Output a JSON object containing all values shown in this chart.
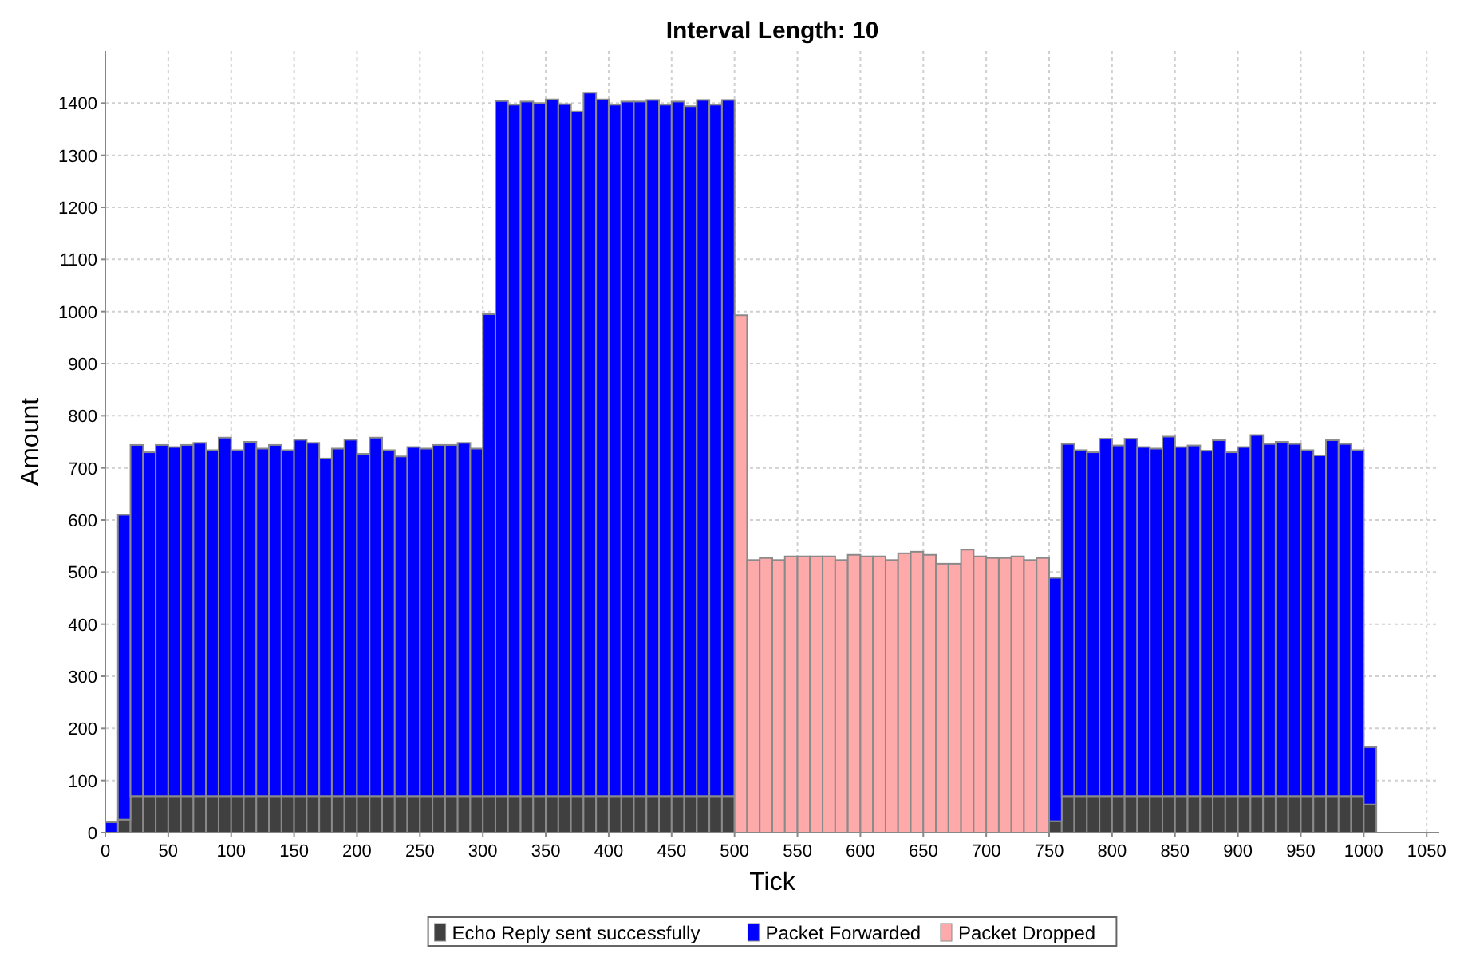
{
  "chart_data": {
    "type": "bar",
    "title": "Interval Length: 10",
    "xlabel": "Tick",
    "ylabel": "Amount",
    "stacked": true,
    "grid": true,
    "legend": "bottom",
    "x": [
      5,
      15,
      25,
      35,
      45,
      55,
      65,
      75,
      85,
      95,
      105,
      115,
      125,
      135,
      145,
      155,
      165,
      175,
      185,
      195,
      205,
      215,
      225,
      235,
      245,
      255,
      265,
      275,
      285,
      295,
      305,
      315,
      325,
      335,
      345,
      355,
      365,
      375,
      385,
      395,
      405,
      415,
      425,
      435,
      445,
      455,
      465,
      475,
      485,
      495,
      505,
      515,
      525,
      535,
      545,
      555,
      565,
      575,
      585,
      595,
      605,
      615,
      625,
      635,
      645,
      655,
      665,
      675,
      685,
      695,
      705,
      715,
      725,
      735,
      745,
      755,
      765,
      775,
      785,
      795,
      805,
      815,
      825,
      835,
      845,
      855,
      865,
      875,
      885,
      895,
      905,
      915,
      925,
      935,
      945,
      955,
      965,
      975,
      985,
      995,
      1005
    ],
    "xlim": [
      0,
      1060
    ],
    "xticks": [
      0,
      50,
      100,
      150,
      200,
      250,
      300,
      350,
      400,
      450,
      500,
      550,
      600,
      650,
      700,
      750,
      800,
      850,
      900,
      950,
      1000,
      1050
    ],
    "ylim": [
      0,
      1500
    ],
    "yticks": [
      0,
      100,
      200,
      300,
      400,
      500,
      600,
      700,
      800,
      900,
      1000,
      1100,
      1200,
      1300,
      1400
    ],
    "series": [
      {
        "name": "Echo Reply sent successfully",
        "color": "#404040",
        "values": [
          null,
          25,
          70,
          70,
          70,
          70,
          70,
          70,
          70,
          70,
          70,
          70,
          70,
          70,
          70,
          70,
          70,
          70,
          70,
          70,
          70,
          70,
          70,
          70,
          70,
          70,
          70,
          70,
          70,
          70,
          70,
          70,
          70,
          70,
          70,
          70,
          70,
          70,
          70,
          70,
          70,
          70,
          70,
          70,
          70,
          70,
          70,
          70,
          70,
          70,
          null,
          null,
          null,
          null,
          null,
          null,
          null,
          null,
          null,
          null,
          null,
          null,
          null,
          null,
          null,
          null,
          null,
          null,
          null,
          null,
          null,
          null,
          null,
          null,
          null,
          22,
          70,
          70,
          70,
          70,
          70,
          70,
          70,
          70,
          70,
          70,
          70,
          70,
          70,
          70,
          70,
          70,
          70,
          70,
          70,
          70,
          70,
          70,
          70,
          70,
          54
        ]
      },
      {
        "name": "Packet Forwarded",
        "color": "#0000ff",
        "values": [
          20,
          585,
          674,
          660,
          674,
          670,
          674,
          678,
          664,
          688,
          664,
          680,
          667,
          674,
          664,
          684,
          678,
          648,
          667,
          684,
          657,
          688,
          664,
          652,
          670,
          667,
          674,
          674,
          678,
          667,
          925,
          1334,
          1327,
          1333,
          1330,
          1337,
          1328,
          1314,
          1350,
          1337,
          1327,
          1333,
          1333,
          1336,
          1327,
          1333,
          1324,
          1336,
          1327,
          1336,
          null,
          null,
          null,
          null,
          null,
          null,
          null,
          null,
          null,
          null,
          null,
          null,
          null,
          null,
          null,
          null,
          null,
          null,
          null,
          null,
          null,
          null,
          null,
          null,
          null,
          467,
          676,
          664,
          660,
          686,
          673,
          686,
          670,
          667,
          690,
          670,
          673,
          663,
          683,
          660,
          670,
          693,
          676,
          680,
          676,
          664,
          654,
          683,
          676,
          664,
          110
        ]
      },
      {
        "name": "Packet Dropped",
        "color": "#ffaaaa",
        "values": [
          null,
          null,
          null,
          null,
          null,
          null,
          null,
          null,
          null,
          null,
          null,
          null,
          null,
          null,
          null,
          null,
          null,
          null,
          null,
          null,
          null,
          null,
          null,
          null,
          null,
          null,
          null,
          null,
          null,
          null,
          null,
          null,
          null,
          null,
          null,
          null,
          null,
          null,
          null,
          null,
          null,
          null,
          null,
          null,
          null,
          null,
          null,
          null,
          null,
          null,
          993,
          523,
          527,
          523,
          530,
          530,
          530,
          530,
          523,
          533,
          530,
          530,
          523,
          536,
          539,
          533,
          516,
          516,
          543,
          530,
          527,
          527,
          530,
          523,
          527,
          null,
          null,
          null,
          null,
          null,
          null,
          null,
          null,
          null,
          null,
          null,
          null,
          null,
          null,
          null,
          null,
          null,
          null,
          null,
          null,
          null,
          null,
          null,
          null,
          null,
          null
        ]
      }
    ]
  }
}
